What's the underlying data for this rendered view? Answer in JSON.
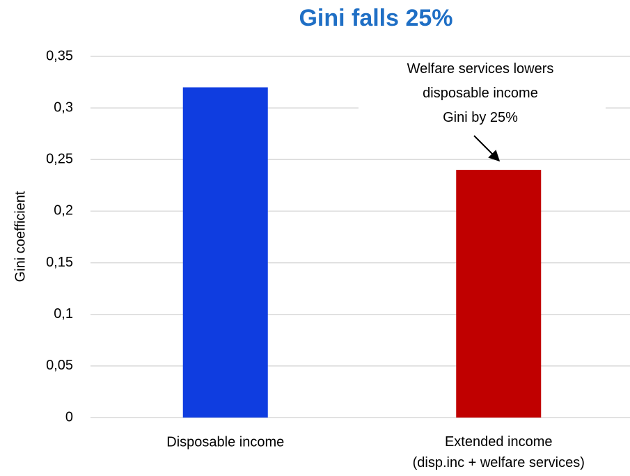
{
  "chart_data": {
    "type": "bar",
    "title": "Gini falls 25%",
    "y_label": "Gini coefficient",
    "categories": [
      "Disposable income",
      "Extended income\n(disp.inc + welfare services)"
    ],
    "values": [
      0.32,
      0.24
    ],
    "colors": [
      "#0f3de0",
      "#c00000"
    ],
    "ylim": [
      0,
      0.35
    ],
    "yticks": [
      0,
      {
        "value": 0.05,
        "label": "0,05"
      },
      {
        "value": 0.1,
        "label": "0,1"
      },
      {
        "value": 0.15,
        "label": "0,15"
      },
      {
        "value": 0.2,
        "label": "0,2"
      },
      {
        "value": 0.25,
        "label": "0,25"
      },
      {
        "value": 0.3,
        "label": "0,3"
      },
      {
        "value": 0.35,
        "label": "0,35"
      }
    ],
    "grid": true,
    "annotation": "Welfare services lowers\ndisposable income\nGini by 25%"
  }
}
